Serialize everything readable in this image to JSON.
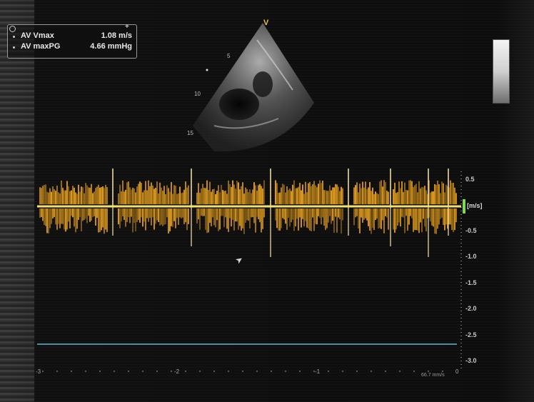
{
  "measurements": {
    "av_vmax_label": "AV Vmax",
    "av_vmax_value": "1.08 m/s",
    "av_maxpg_label": "AV maxPG",
    "av_maxpg_value": "4.66 mmHg"
  },
  "image_2d": {
    "orientation_marker": "V",
    "depth_labels": [
      "5",
      "10",
      "15"
    ]
  },
  "doppler": {
    "velocity_unit": "[m/s]",
    "velocity_scale": [
      "0.5",
      "-0.5",
      "-1.0",
      "-1.5",
      "-2.0",
      "-2.5",
      "-3.0"
    ],
    "time_marks": [
      "-3",
      "-2",
      "-1",
      "0"
    ],
    "sweep_label": "66.7 mm/s",
    "velocity_range_m_s": [
      0.5,
      -3.0
    ],
    "spectral_color": "#e9a21f",
    "baseline_color": "#f2e26a",
    "marker_color": "#7ed957",
    "scale_line_color": "#5fb7c9"
  },
  "colors": {
    "background": "#0b0b0b",
    "text": "#e8e8e8"
  }
}
